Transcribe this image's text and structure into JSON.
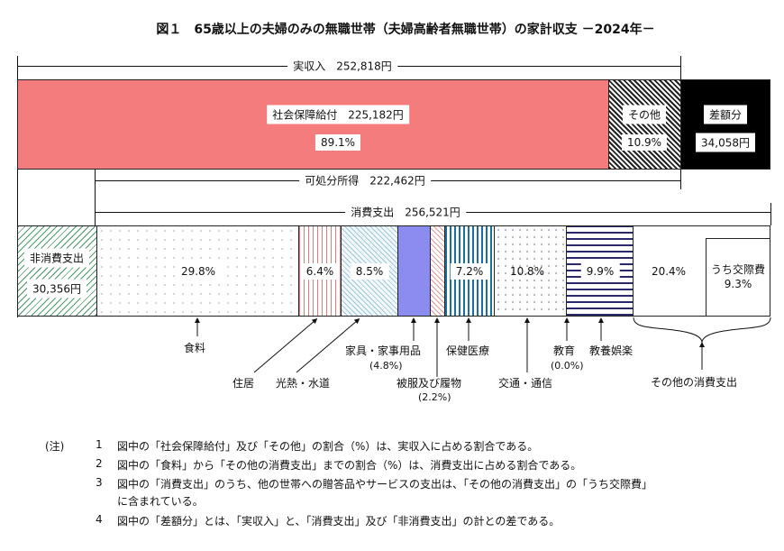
{
  "title": "図１　65歳以上の夫婦のみの無職世帯（夫婦高齢者無職世帯）の家計収支 －2024年－",
  "income": {
    "label": "実収入　252,818円",
    "social_security": "社会保障給付　225,182円",
    "social_security_pct": "89.1%",
    "other": "その他",
    "other_pct": "10.9%",
    "surplus": "差額分",
    "surplus_value": "34,058円"
  },
  "disposable": "可処分所得　222,462円",
  "consumption": "消費支出　256,521円",
  "non_consumption": {
    "label": "非消費支出",
    "value": "30,356円"
  },
  "segments": {
    "food": "29.8%",
    "housing": "6.4%",
    "utilities": "8.5%",
    "medical": "7.2%",
    "transport": "10.8%",
    "recreation": "9.9%",
    "other": "20.4%",
    "social_label": "うち交際費",
    "social": "9.3%"
  },
  "categories": {
    "food": "食料",
    "housing": "住居",
    "utilities": "光熱・水道",
    "furniture": "家具・家事用品",
    "furniture_pct": "(4.8%)",
    "clothing": "被服及び履物",
    "clothing_pct": "(2.2%)",
    "medical": "保健医療",
    "transport": "交通・通信",
    "education": "教育",
    "education_pct": "(0.0%)",
    "recreation": "教養娯楽",
    "other": "その他の消費支出"
  },
  "colors": {
    "social_security": "#f47c7c",
    "furniture": "#8c8cf0",
    "surplus": "#000000"
  },
  "notes": {
    "head": "(注)",
    "items": [
      {
        "n": "1",
        "text": "図中の「社会保障給付」及び「その他」の割合（%）は、実収入に占める割合である。"
      },
      {
        "n": "2",
        "text": "図中の「食料」から「その他の消費支出」までの割合（%）は、消費支出に占める割合である。"
      },
      {
        "n": "3",
        "text": "図中の「消費支出」のうち、他の世帯への贈答品やサービスの支出は、「その他の消費支出」の「うち交際費」",
        "text2": "に含まれている。"
      },
      {
        "n": "4",
        "text": "図中の「差額分」とは、「実収入」と、「消費支出」及び「非消費支出」の計との差である。"
      }
    ]
  }
}
